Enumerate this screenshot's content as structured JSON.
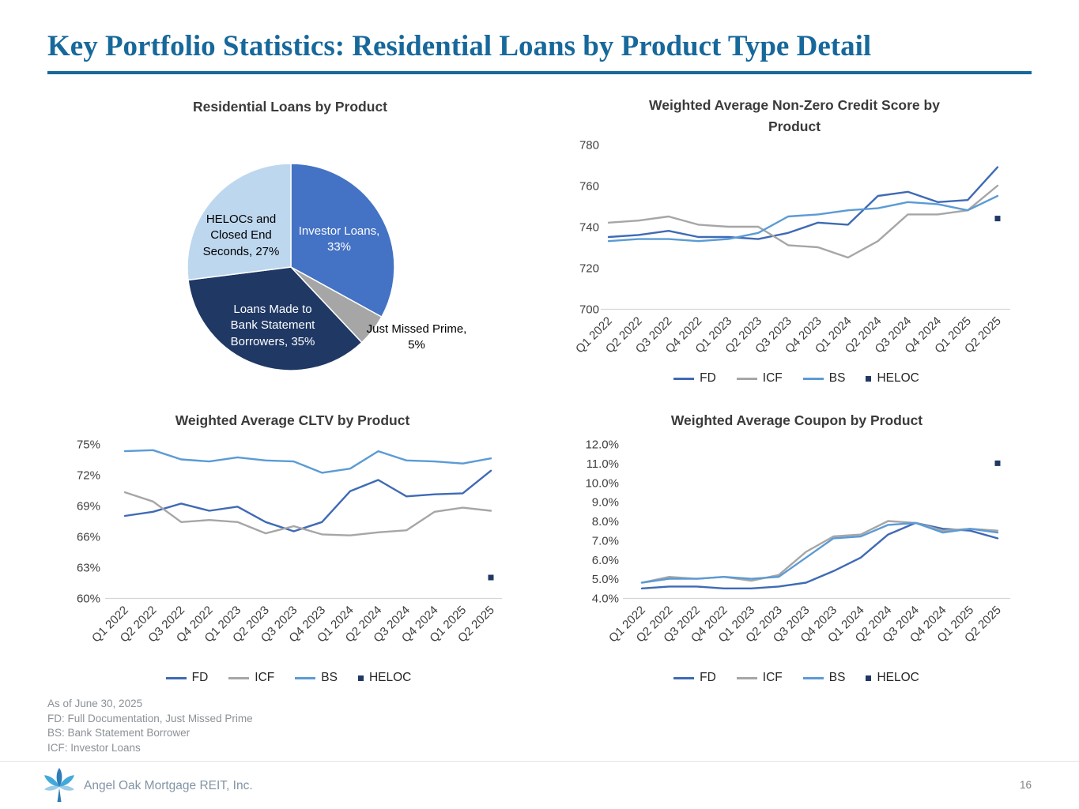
{
  "page": {
    "title": "Key Portfolio Statistics: Residential Loans by Product Type Detail",
    "accent_color": "#17689B"
  },
  "colors": {
    "fd": "#3F6AB5",
    "icf": "#A6A6A6",
    "bs": "#5B9BD5",
    "heloc": "#1F3864",
    "axis": "#D6D6D6"
  },
  "footnotes": {
    "lines": [
      "As of June 30, 2025",
      "FD: Full Documentation, Just Missed Prime",
      "BS: Bank Statement Borrower",
      "ICF: Investor Loans"
    ]
  },
  "footer": {
    "company": "Angel Oak Mortgage REIT, Inc.",
    "page_number": "16"
  },
  "chart_data": [
    {
      "type": "pie",
      "title": "Residential Loans by Product",
      "slices": [
        {
          "label": "Investor Loans",
          "value": 33,
          "display": "Investor Loans, 33%",
          "color": "#4472C4"
        },
        {
          "label": "Just Missed Prime",
          "value": 5,
          "display": "Just Missed Prime, 5%",
          "color": "#A6A6A6"
        },
        {
          "label": "Loans Made to Bank Statement Borrowers",
          "value": 35,
          "display": "Loans Made to Bank Statement Borrowers, 35%",
          "color": "#1F3864"
        },
        {
          "label": "HELOCs and Closed End Seconds",
          "value": 27,
          "display": "HELOCs and Closed End Seconds, 27%",
          "color": "#BDD7EE"
        }
      ]
    },
    {
      "type": "line",
      "title": "Weighted Average Non-Zero Credit Score by Product",
      "categories": [
        "Q1 2022",
        "Q2 2022",
        "Q3 2022",
        "Q4 2022",
        "Q1 2023",
        "Q2 2023",
        "Q3 2023",
        "Q4 2023",
        "Q1 2024",
        "Q2 2024",
        "Q3 2024",
        "Q4 2024",
        "Q1 2025",
        "Q2 2025"
      ],
      "ylim": [
        700,
        780
      ],
      "ytick_step": 20,
      "ytick_labels": [
        "700",
        "720",
        "740",
        "760",
        "780"
      ],
      "series": [
        {
          "name": "FD",
          "color": "#3F6AB5",
          "values": [
            735,
            736,
            738,
            735,
            735,
            734,
            737,
            742,
            741,
            755,
            757,
            752,
            753,
            769
          ]
        },
        {
          "name": "ICF",
          "color": "#A6A6A6",
          "values": [
            742,
            743,
            745,
            741,
            740,
            740,
            731,
            730,
            725,
            733,
            746,
            746,
            748,
            760
          ]
        },
        {
          "name": "BS",
          "color": "#5B9BD5",
          "values": [
            733,
            734,
            734,
            733,
            734,
            737,
            745,
            746,
            748,
            749,
            752,
            751,
            748,
            755
          ]
        }
      ],
      "point_series": [
        {
          "name": "HELOC",
          "color": "#1F3864",
          "x_index": 13,
          "value": 744
        }
      ],
      "legend": [
        "FD",
        "ICF",
        "BS",
        "HELOC"
      ],
      "grid": false,
      "legend_position": "bottom"
    },
    {
      "type": "line",
      "title": "Weighted Average CLTV by Product",
      "categories": [
        "Q1 2022",
        "Q2 2022",
        "Q3 2022",
        "Q4 2022",
        "Q1 2023",
        "Q2 2023",
        "Q3 2023",
        "Q4 2023",
        "Q1 2024",
        "Q2 2024",
        "Q3 2024",
        "Q4 2024",
        "Q1 2025",
        "Q2 2025"
      ],
      "ylim": [
        60,
        75
      ],
      "ytick_step": 3,
      "ytick_labels": [
        "60%",
        "63%",
        "66%",
        "69%",
        "72%",
        "75%"
      ],
      "series": [
        {
          "name": "FD",
          "color": "#3F6AB5",
          "values": [
            68.0,
            68.4,
            69.2,
            68.5,
            68.9,
            67.4,
            66.5,
            67.4,
            70.4,
            71.5,
            69.9,
            70.1,
            70.2,
            72.4
          ]
        },
        {
          "name": "ICF",
          "color": "#A6A6A6",
          "values": [
            70.3,
            69.4,
            67.4,
            67.6,
            67.4,
            66.3,
            67.0,
            66.2,
            66.1,
            66.4,
            66.6,
            68.4,
            68.8,
            68.5
          ]
        },
        {
          "name": "BS",
          "color": "#5B9BD5",
          "values": [
            74.3,
            74.4,
            73.5,
            73.3,
            73.7,
            73.4,
            73.3,
            72.2,
            72.6,
            74.3,
            73.4,
            73.3,
            73.1,
            73.6
          ]
        }
      ],
      "point_series": [
        {
          "name": "HELOC",
          "color": "#1F3864",
          "x_index": 13,
          "value": 62.0
        }
      ],
      "legend": [
        "FD",
        "ICF",
        "BS",
        "HELOC"
      ],
      "grid": false,
      "legend_position": "bottom"
    },
    {
      "type": "line",
      "title": "Weighted Average Coupon by Product",
      "categories": [
        "Q1 2022",
        "Q2 2022",
        "Q3 2022",
        "Q4 2022",
        "Q1 2023",
        "Q2 2023",
        "Q3 2023",
        "Q4 2023",
        "Q1 2024",
        "Q2 2024",
        "Q3 2024",
        "Q4 2024",
        "Q1 2025",
        "Q2 2025"
      ],
      "ylim": [
        4,
        12
      ],
      "ytick_step": 1,
      "ytick_labels": [
        "4.0%",
        "5.0%",
        "6.0%",
        "7.0%",
        "8.0%",
        "9.0%",
        "10.0%",
        "11.0%",
        "12.0%"
      ],
      "series": [
        {
          "name": "FD",
          "color": "#3F6AB5",
          "values": [
            4.5,
            4.6,
            4.6,
            4.5,
            4.5,
            4.6,
            4.8,
            5.4,
            6.1,
            7.3,
            7.9,
            7.6,
            7.5,
            7.1
          ]
        },
        {
          "name": "ICF",
          "color": "#A6A6A6",
          "values": [
            4.8,
            5.1,
            5.0,
            5.1,
            4.9,
            5.2,
            6.4,
            7.2,
            7.3,
            8.0,
            7.9,
            7.5,
            7.6,
            7.5
          ]
        },
        {
          "name": "BS",
          "color": "#5B9BD5",
          "values": [
            4.8,
            5.0,
            5.0,
            5.1,
            5.0,
            5.1,
            6.1,
            7.1,
            7.2,
            7.8,
            7.9,
            7.4,
            7.6,
            7.4
          ]
        }
      ],
      "point_series": [
        {
          "name": "HELOC",
          "color": "#1F3864",
          "x_index": 13,
          "value": 11.0
        }
      ],
      "legend": [
        "FD",
        "ICF",
        "BS",
        "HELOC"
      ],
      "grid": false,
      "legend_position": "bottom"
    }
  ]
}
